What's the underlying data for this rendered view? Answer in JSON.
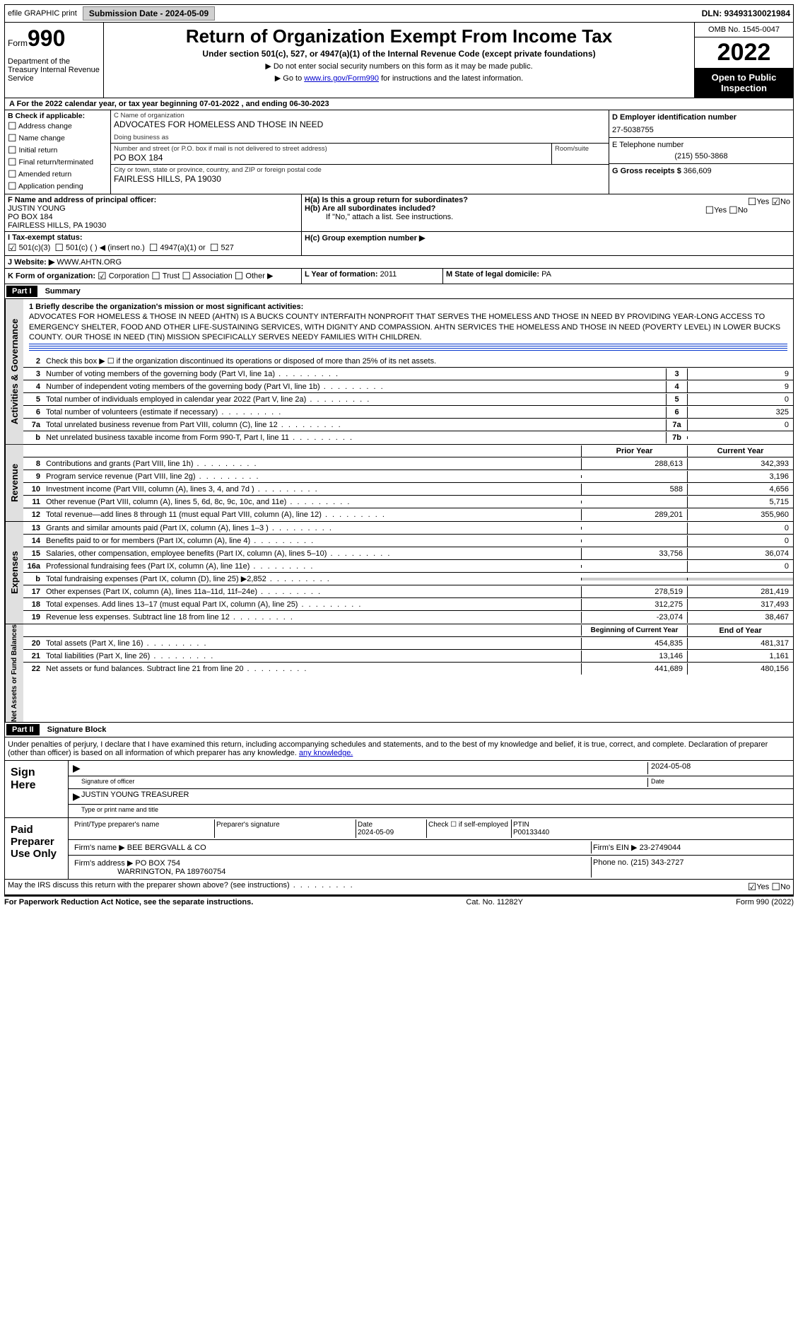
{
  "topbar": {
    "efile": "efile GRAPHIC print",
    "submission": "Submission Date - 2024-05-09",
    "dln": "DLN: 93493130021984"
  },
  "header": {
    "form_label": "Form",
    "form_num": "990",
    "dept": "Department of the Treasury Internal Revenue Service",
    "title": "Return of Organization Exempt From Income Tax",
    "sub": "Under section 501(c), 527, or 4947(a)(1) of the Internal Revenue Code (except private foundations)",
    "note1": "▶ Do not enter social security numbers on this form as it may be made public.",
    "note2_pre": "▶ Go to ",
    "note2_link": "www.irs.gov/Form990",
    "note2_post": " for instructions and the latest information.",
    "omb": "OMB No. 1545-0047",
    "year": "2022",
    "inspect": "Open to Public Inspection"
  },
  "period": {
    "line_a": "A For the 2022 calendar year, or tax year beginning 07-01-2022   , and ending 06-30-2023"
  },
  "section_b": {
    "title": "B Check if applicable:",
    "items": [
      "Address change",
      "Name change",
      "Initial return",
      "Final return/terminated",
      "Amended return",
      "Application pending"
    ]
  },
  "section_c": {
    "name_label": "C Name of organization",
    "name": "ADVOCATES FOR HOMELESS AND THOSE IN NEED",
    "dba_label": "Doing business as",
    "street_label": "Number and street (or P.O. box if mail is not delivered to street address)",
    "street": "PO BOX 184",
    "room_label": "Room/suite",
    "city_label": "City or town, state or province, country, and ZIP or foreign postal code",
    "city": "FAIRLESS HILLS, PA  19030",
    "officer_label": "F Name and address of principal officer:",
    "officer": "JUSTIN YOUNG\nPO BOX 184\nFAIRLESS HILLS, PA  19030"
  },
  "section_d": {
    "ein_label": "D Employer identification number",
    "ein": "27-5038755",
    "phone_label": "E Telephone number",
    "phone": "(215) 550-3868",
    "gross_label": "G Gross receipts $",
    "gross": "366,609"
  },
  "section_h": {
    "ha": "H(a)  Is this a group return for subordinates?",
    "hb": "H(b)  Are all subordinates included?",
    "hb_note": "If \"No,\" attach a list. See instructions.",
    "hc": "H(c)  Group exemption number ▶"
  },
  "section_i": {
    "label": "I   Tax-exempt status:",
    "opts": [
      "501(c)(3)",
      "501(c) (   ) ◀ (insert no.)",
      "4947(a)(1) or",
      "527"
    ]
  },
  "section_j": {
    "label": "J   Website: ▶",
    "val": "WWW.AHTN.ORG"
  },
  "section_k": {
    "label": "K Form of organization:",
    "opts": [
      "Corporation",
      "Trust",
      "Association",
      "Other ▶"
    ]
  },
  "section_l": {
    "label": "L Year of formation:",
    "val": "2011"
  },
  "section_m": {
    "label": "M State of legal domicile:",
    "val": "PA"
  },
  "part1": {
    "num": "Part I",
    "title": "Summary",
    "q1": "1  Briefly describe the organization's mission or most significant activities:",
    "mission": "ADVOCATES FOR HOMELESS & THOSE IN NEED (AHTN) IS A BUCKS COUNTY INTERFAITH NONPROFIT THAT SERVES THE HOMELESS AND THOSE IN NEED BY PROVIDING YEAR-LONG ACCESS TO EMERGENCY SHELTER, FOOD AND OTHER LIFE-SUSTAINING SERVICES, WITH DIGNITY AND COMPASSION. AHTN SERVICES THE HOMELESS AND THOSE IN NEED (POVERTY LEVEL) IN LOWER BUCKS COUNTY. OUR THOSE IN NEED (TIN) MISSION SPECIFICALLY SERVES NEEDY FAMILIES WITH CHILDREN.",
    "q2": "Check this box ▶ ☐ if the organization discontinued its operations or disposed of more than 25% of its net assets."
  },
  "gov_vert": "Activities & Governance",
  "rev_vert": "Revenue",
  "exp_vert": "Expenses",
  "net_vert": "Net Assets or Fund Balances",
  "lines": {
    "l3": {
      "num": "3",
      "desc": "Number of voting members of the governing body (Part VI, line 1a)",
      "box": "3",
      "val": "9"
    },
    "l4": {
      "num": "4",
      "desc": "Number of independent voting members of the governing body (Part VI, line 1b)",
      "box": "4",
      "val": "9"
    },
    "l5": {
      "num": "5",
      "desc": "Total number of individuals employed in calendar year 2022 (Part V, line 2a)",
      "box": "5",
      "val": "0"
    },
    "l6": {
      "num": "6",
      "desc": "Total number of volunteers (estimate if necessary)",
      "box": "6",
      "val": "325"
    },
    "l7a": {
      "num": "7a",
      "desc": "Total unrelated business revenue from Part VIII, column (C), line 12",
      "box": "7a",
      "val": "0"
    },
    "l7b": {
      "num": "b",
      "desc": "Net unrelated business taxable income from Form 990-T, Part I, line 11",
      "box": "7b",
      "val": ""
    }
  },
  "rev_head": {
    "prior": "Prior Year",
    "current": "Current Year"
  },
  "rev_lines": [
    {
      "num": "8",
      "desc": "Contributions and grants (Part VIII, line 1h)",
      "prior": "288,613",
      "curr": "342,393"
    },
    {
      "num": "9",
      "desc": "Program service revenue (Part VIII, line 2g)",
      "prior": "",
      "curr": "3,196"
    },
    {
      "num": "10",
      "desc": "Investment income (Part VIII, column (A), lines 3, 4, and 7d )",
      "prior": "588",
      "curr": "4,656"
    },
    {
      "num": "11",
      "desc": "Other revenue (Part VIII, column (A), lines 5, 6d, 8c, 9c, 10c, and 11e)",
      "prior": "",
      "curr": "5,715"
    },
    {
      "num": "12",
      "desc": "Total revenue—add lines 8 through 11 (must equal Part VIII, column (A), line 12)",
      "prior": "289,201",
      "curr": "355,960"
    }
  ],
  "exp_lines": [
    {
      "num": "13",
      "desc": "Grants and similar amounts paid (Part IX, column (A), lines 1–3 )",
      "prior": "",
      "curr": "0"
    },
    {
      "num": "14",
      "desc": "Benefits paid to or for members (Part IX, column (A), line 4)",
      "prior": "",
      "curr": "0"
    },
    {
      "num": "15",
      "desc": "Salaries, other compensation, employee benefits (Part IX, column (A), lines 5–10)",
      "prior": "33,756",
      "curr": "36,074"
    },
    {
      "num": "16a",
      "desc": "Professional fundraising fees (Part IX, column (A), line 11e)",
      "prior": "",
      "curr": "0"
    },
    {
      "num": "b",
      "desc": "Total fundraising expenses (Part IX, column (D), line 25) ▶2,852",
      "prior": "GRAY",
      "curr": "GRAY"
    },
    {
      "num": "17",
      "desc": "Other expenses (Part IX, column (A), lines 11a–11d, 11f–24e)",
      "prior": "278,519",
      "curr": "281,419"
    },
    {
      "num": "18",
      "desc": "Total expenses. Add lines 13–17 (must equal Part IX, column (A), line 25)",
      "prior": "312,275",
      "curr": "317,493"
    },
    {
      "num": "19",
      "desc": "Revenue less expenses. Subtract line 18 from line 12",
      "prior": "-23,074",
      "curr": "38,467"
    }
  ],
  "net_head": {
    "begin": "Beginning of Current Year",
    "end": "End of Year"
  },
  "net_lines": [
    {
      "num": "20",
      "desc": "Total assets (Part X, line 16)",
      "prior": "454,835",
      "curr": "481,317"
    },
    {
      "num": "21",
      "desc": "Total liabilities (Part X, line 26)",
      "prior": "13,146",
      "curr": "1,161"
    },
    {
      "num": "22",
      "desc": "Net assets or fund balances. Subtract line 21 from line 20",
      "prior": "441,689",
      "curr": "480,156"
    }
  ],
  "part2": {
    "num": "Part II",
    "title": "Signature Block",
    "decl": "Under penalties of perjury, I declare that I have examined this return, including accompanying schedules and statements, and to the best of my knowledge and belief, it is true, correct, and complete. Declaration of preparer (other than officer) is based on all information of which preparer has any knowledge."
  },
  "sign": {
    "here": "Sign Here",
    "sig_label": "Signature of officer",
    "date_label": "Date",
    "date": "2024-05-08",
    "name": "JUSTIN YOUNG TREASURER",
    "name_label": "Type or print name and title"
  },
  "prep": {
    "label": "Paid Preparer Use Only",
    "h1": "Print/Type preparer's name",
    "h2": "Preparer's signature",
    "h3": "Date",
    "h3v": "2024-05-09",
    "h4": "Check ☐ if self-employed",
    "h5": "PTIN",
    "ptin": "P00133440",
    "firm_label": "Firm's name   ▶",
    "firm": "BEE BERGVALL & CO",
    "ein_label": "Firm's EIN ▶",
    "ein": "23-2749044",
    "addr_label": "Firm's address ▶",
    "addr": "PO BOX 754",
    "city": "WARRINGTON, PA  189760754",
    "phone_label": "Phone no.",
    "phone": "(215) 343-2727"
  },
  "discuss": "May the IRS discuss this return with the preparer shown above? (see instructions)",
  "footer": {
    "l": "For Paperwork Reduction Act Notice, see the separate instructions.",
    "c": "Cat. No. 11282Y",
    "r": "Form 990 (2022)"
  }
}
